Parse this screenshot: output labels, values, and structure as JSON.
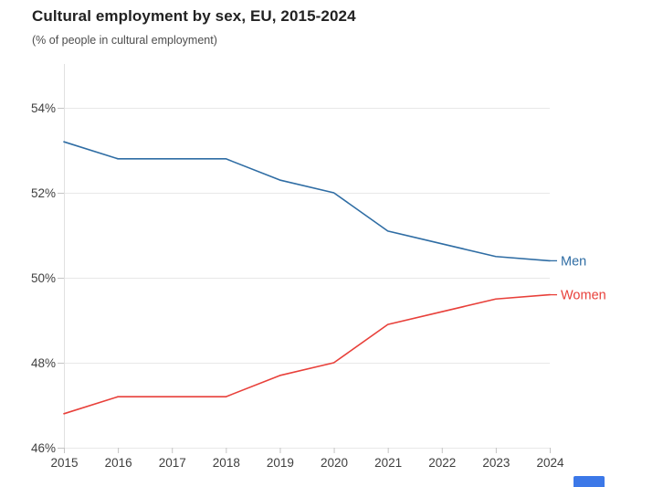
{
  "header": {
    "title": "Cultural employment by sex, EU, 2015-2024",
    "subtitle": "(% of people in cultural employment)"
  },
  "chart_data": {
    "type": "line",
    "x": [
      "2015",
      "2016",
      "2017",
      "2018",
      "2019",
      "2020",
      "2021",
      "2022",
      "2023",
      "2024"
    ],
    "series": [
      {
        "name": "Men",
        "color": "#2f6da4",
        "values": [
          53.2,
          52.8,
          52.8,
          52.8,
          52.3,
          52.0,
          51.1,
          50.8,
          50.5,
          50.4
        ]
      },
      {
        "name": "Women",
        "color": "#e8403a",
        "values": [
          46.8,
          47.2,
          47.2,
          47.2,
          47.7,
          48.0,
          48.9,
          49.2,
          49.5,
          49.6
        ]
      }
    ],
    "yticks": [
      {
        "value": 46,
        "label": "46%"
      },
      {
        "value": 48,
        "label": "48%"
      },
      {
        "value": 50,
        "label": "50%"
      },
      {
        "value": 52,
        "label": "52%"
      },
      {
        "value": 54,
        "label": "54%"
      }
    ],
    "ylim": [
      46,
      55
    ],
    "grid": "horizontal",
    "legend_position": "line-end-right",
    "colors": {
      "gridline": "#e8e8e8",
      "axis": "#e0e0e0",
      "tick": "#c4c4c4",
      "tick_label": "#3f3f3f"
    }
  },
  "footer": {
    "share_button_color": "#3c78e8"
  }
}
